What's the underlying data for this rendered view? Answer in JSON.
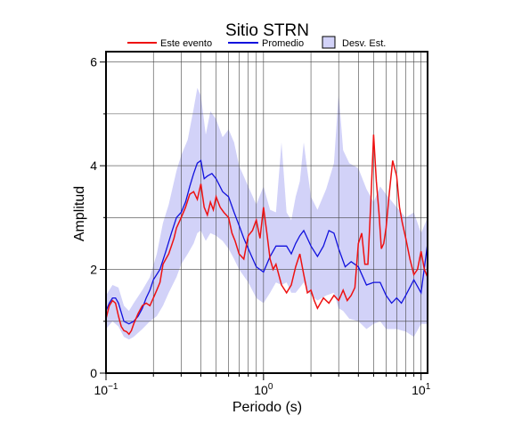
{
  "chart_data": {
    "type": "line",
    "title": "Sitio STRN",
    "xlabel": "Periodo (s)",
    "ylabel": "Amplitud",
    "x_scale": "log",
    "xlim": [
      0.1,
      11
    ],
    "ylim": [
      0,
      6.2
    ],
    "grid": true,
    "legend_position": "top",
    "x_ticks": [
      {
        "base": "10",
        "exp": "−1"
      },
      {
        "base": "10",
        "exp": "0"
      },
      {
        "base": "10",
        "exp": "1"
      }
    ],
    "y_ticks": [
      "0",
      "2",
      "4",
      "6"
    ],
    "legend": {
      "event_label": "Este evento",
      "mean_label": "Promedio",
      "band_label": "Desv. Est."
    },
    "colors": {
      "event": "#ee1111",
      "mean": "#1111dd",
      "band": "#d2d2f8"
    },
    "series": [
      {
        "name": "Este evento",
        "x": [
          0.1,
          0.105,
          0.11,
          0.115,
          0.12,
          0.125,
          0.13,
          0.135,
          0.14,
          0.145,
          0.15,
          0.16,
          0.17,
          0.18,
          0.19,
          0.2,
          0.21,
          0.22,
          0.23,
          0.24,
          0.25,
          0.26,
          0.27,
          0.28,
          0.3,
          0.32,
          0.34,
          0.36,
          0.38,
          0.4,
          0.42,
          0.44,
          0.46,
          0.48,
          0.5,
          0.53,
          0.56,
          0.6,
          0.63,
          0.66,
          0.7,
          0.75,
          0.8,
          0.85,
          0.9,
          0.95,
          1.0,
          1.05,
          1.1,
          1.15,
          1.2,
          1.3,
          1.4,
          1.5,
          1.6,
          1.7,
          1.8,
          1.9,
          2.0,
          2.1,
          2.2,
          2.4,
          2.6,
          2.8,
          3.0,
          3.2,
          3.4,
          3.6,
          3.8,
          4.0,
          4.2,
          4.4,
          4.6,
          4.8,
          5.0,
          5.2,
          5.4,
          5.6,
          5.8,
          6.0,
          6.3,
          6.6,
          7.0,
          7.3,
          7.6,
          8.0,
          8.5,
          9.0,
          9.5,
          10.0,
          10.5,
          11.0
        ],
        "y": [
          1.05,
          1.3,
          1.4,
          1.35,
          1.1,
          0.9,
          0.82,
          0.8,
          0.75,
          0.82,
          0.95,
          1.15,
          1.3,
          1.35,
          1.3,
          1.45,
          1.6,
          1.75,
          2.1,
          2.2,
          2.3,
          2.45,
          2.6,
          2.8,
          3.0,
          3.2,
          3.45,
          3.5,
          3.35,
          3.65,
          3.2,
          3.05,
          3.3,
          3.15,
          3.4,
          3.2,
          3.1,
          3.0,
          2.7,
          2.55,
          2.3,
          2.2,
          2.65,
          2.75,
          2.95,
          2.6,
          3.2,
          2.7,
          2.2,
          2.0,
          2.1,
          1.7,
          1.55,
          1.7,
          2.05,
          2.3,
          1.9,
          1.55,
          1.6,
          1.4,
          1.25,
          1.45,
          1.35,
          1.5,
          1.4,
          1.6,
          1.4,
          1.5,
          1.65,
          2.5,
          2.7,
          2.1,
          2.1,
          3.3,
          4.6,
          3.7,
          3.1,
          2.4,
          2.5,
          2.8,
          3.5,
          4.1,
          3.8,
          3.2,
          2.9,
          2.6,
          2.2,
          1.9,
          2.0,
          2.35,
          2.0,
          1.85
        ]
      },
      {
        "name": "Promedio",
        "x": [
          0.1,
          0.105,
          0.11,
          0.115,
          0.12,
          0.13,
          0.14,
          0.15,
          0.16,
          0.17,
          0.18,
          0.19,
          0.2,
          0.22,
          0.24,
          0.26,
          0.28,
          0.3,
          0.32,
          0.34,
          0.36,
          0.38,
          0.4,
          0.42,
          0.44,
          0.47,
          0.5,
          0.55,
          0.6,
          0.65,
          0.7,
          0.75,
          0.8,
          0.9,
          1.0,
          1.1,
          1.2,
          1.3,
          1.4,
          1.5,
          1.6,
          1.7,
          1.8,
          1.9,
          2.0,
          2.2,
          2.4,
          2.6,
          2.8,
          3.0,
          3.3,
          3.6,
          4.0,
          4.5,
          5.0,
          5.5,
          6.0,
          6.5,
          7.0,
          7.5,
          8.0,
          9.0,
          10.0,
          11.0
        ],
        "y": [
          1.2,
          1.35,
          1.45,
          1.45,
          1.35,
          1.0,
          0.95,
          1.0,
          1.1,
          1.25,
          1.45,
          1.6,
          1.8,
          2.0,
          2.35,
          2.7,
          3.0,
          3.1,
          3.3,
          3.6,
          3.85,
          4.05,
          4.1,
          3.75,
          3.8,
          3.85,
          3.75,
          3.5,
          3.4,
          3.1,
          2.85,
          2.6,
          2.4,
          2.05,
          1.95,
          2.25,
          2.45,
          2.45,
          2.45,
          2.3,
          2.5,
          2.65,
          2.75,
          2.6,
          2.45,
          2.25,
          2.45,
          2.75,
          2.7,
          2.4,
          2.05,
          2.15,
          2.05,
          1.7,
          1.75,
          1.75,
          1.5,
          1.35,
          1.45,
          1.35,
          1.5,
          1.8,
          1.55,
          2.5
        ]
      },
      {
        "name": "Desv. Est.",
        "x": [
          0.1,
          0.11,
          0.12,
          0.13,
          0.14,
          0.15,
          0.17,
          0.19,
          0.21,
          0.23,
          0.25,
          0.28,
          0.3,
          0.33,
          0.36,
          0.38,
          0.4,
          0.43,
          0.46,
          0.5,
          0.55,
          0.6,
          0.65,
          0.7,
          0.8,
          0.9,
          1.0,
          1.1,
          1.2,
          1.3,
          1.4,
          1.5,
          1.6,
          1.7,
          1.8,
          1.9,
          2.0,
          2.2,
          2.5,
          2.8,
          3.0,
          3.2,
          3.5,
          4.0,
          4.5,
          5.0,
          5.5,
          6.0,
          7.0,
          8.0,
          9.0,
          10.0,
          11.0
        ],
        "upper": [
          1.5,
          1.7,
          1.65,
          1.3,
          1.2,
          1.35,
          1.6,
          1.85,
          2.3,
          2.9,
          3.25,
          3.9,
          4.2,
          4.5,
          5.1,
          5.5,
          5.35,
          4.6,
          5.05,
          4.9,
          4.55,
          4.7,
          4.45,
          4.0,
          3.6,
          3.25,
          3.6,
          3.15,
          3.1,
          4.45,
          3.1,
          2.95,
          3.4,
          3.7,
          4.45,
          3.9,
          3.4,
          3.15,
          3.55,
          4.05,
          5.4,
          4.3,
          4.05,
          3.95,
          3.55,
          3.3,
          3.6,
          3.45,
          3.2,
          3.0,
          3.1,
          2.7,
          3.0
        ],
        "lower": [
          0.85,
          1.0,
          0.9,
          0.7,
          0.65,
          0.7,
          0.85,
          1.0,
          1.1,
          1.3,
          1.55,
          1.85,
          2.1,
          2.3,
          2.5,
          2.7,
          2.75,
          2.55,
          2.7,
          2.65,
          2.55,
          2.4,
          2.2,
          2.0,
          1.75,
          1.45,
          1.35,
          1.55,
          1.75,
          1.7,
          1.75,
          1.55,
          1.55,
          1.65,
          1.75,
          1.6,
          1.5,
          1.4,
          1.5,
          1.55,
          1.25,
          1.2,
          1.05,
          1.0,
          0.85,
          0.95,
          1.0,
          0.85,
          0.85,
          0.8,
          0.7,
          0.95,
          0.95
        ]
      }
    ]
  }
}
